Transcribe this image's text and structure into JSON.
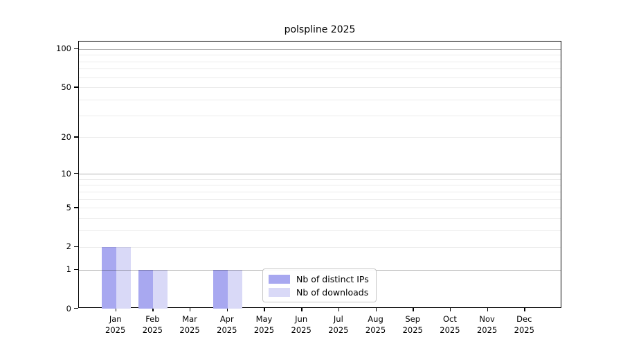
{
  "chart_data": {
    "type": "bar",
    "title": "polspline 2025",
    "categories": [
      "Jan",
      "Feb",
      "Mar",
      "Apr",
      "May",
      "Jun",
      "Jul",
      "Aug",
      "Sep",
      "Oct",
      "Nov",
      "Dec"
    ],
    "category_year": "2025",
    "series": [
      {
        "name": "Nb of distinct IPs",
        "color": "#a8a8f0",
        "values": [
          2,
          1,
          0,
          1,
          0,
          0,
          0,
          0,
          0,
          0,
          0,
          0
        ]
      },
      {
        "name": "Nb of downloads",
        "color": "#d9d9f7",
        "values": [
          2,
          1,
          0,
          1,
          0,
          0,
          0,
          0,
          0,
          0,
          0,
          0
        ]
      }
    ],
    "yscale": "log1p",
    "ylim": [
      0,
      114
    ],
    "yticks": [
      0,
      1,
      2,
      5,
      10,
      20,
      50,
      100
    ],
    "grid_major_values": [
      1,
      10,
      100
    ],
    "grid_minor_values": [
      2,
      3,
      4,
      5,
      6,
      7,
      8,
      9,
      20,
      30,
      40,
      50,
      60,
      70,
      80,
      90
    ],
    "grid": "on",
    "legend_position": "lower center",
    "xlabel": "",
    "ylabel": ""
  }
}
